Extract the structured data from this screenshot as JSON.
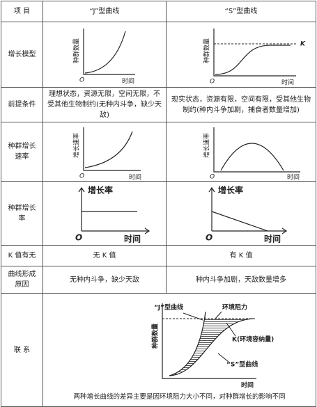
{
  "table": {
    "header": [
      "项 目",
      "“J”型曲线",
      "“S”型曲线"
    ],
    "rows": [
      {
        "label": "增长模型",
        "cells": [
          {
            "y_label": "种群数量",
            "x_label": "时间",
            "origin": "O"
          },
          {
            "y_label": "种群数量",
            "x_label": "时间",
            "origin": "O",
            "k_label": "K"
          }
        ]
      },
      {
        "label": "前提条件",
        "cells": [
          {
            "text": "理想状态，资源无限，空间无限，不受其他生物制约(无种内斗争，缺少天敌)"
          },
          {
            "text": "现实状态，资源有限，空间有限，受其他生物制约(种内斗争加剧，捕食者数量增加)"
          }
        ]
      },
      {
        "label": "种群增长速率",
        "cells": [
          {
            "y_label": "增长速率",
            "x_label": "时间",
            "origin": "O"
          },
          {
            "y_label": "增长速率",
            "x_label": "时间",
            "origin": "O"
          }
        ]
      },
      {
        "label": "种群增长率",
        "cells": [
          {
            "y_label": "增长率",
            "x_label": "时间",
            "origin": "O"
          },
          {
            "y_label": "增长率",
            "x_label": "时间",
            "origin": "O"
          }
        ]
      },
      {
        "label": "K 值有无",
        "cells": [
          {
            "text": "无 K 值"
          },
          {
            "text": "有 K 值"
          }
        ]
      },
      {
        "label": "曲线形成原因",
        "cells": [
          {
            "text": "无种内斗争，缺少天敌"
          },
          {
            "text": "种内斗争加剧，天敌数量增多"
          }
        ]
      },
      {
        "label": "联 系",
        "diagram": {
          "j_label": "“J”型曲线",
          "resistance": "环境阻力",
          "k_label": "K(环境容纳量)",
          "s_label": "“S”型曲线",
          "y_label": "种群数量",
          "x_label": "时间",
          "caption": "两种增长曲线的差异主要是因环境阻力大小不同，对种群增长的影响不同"
        }
      }
    ]
  }
}
